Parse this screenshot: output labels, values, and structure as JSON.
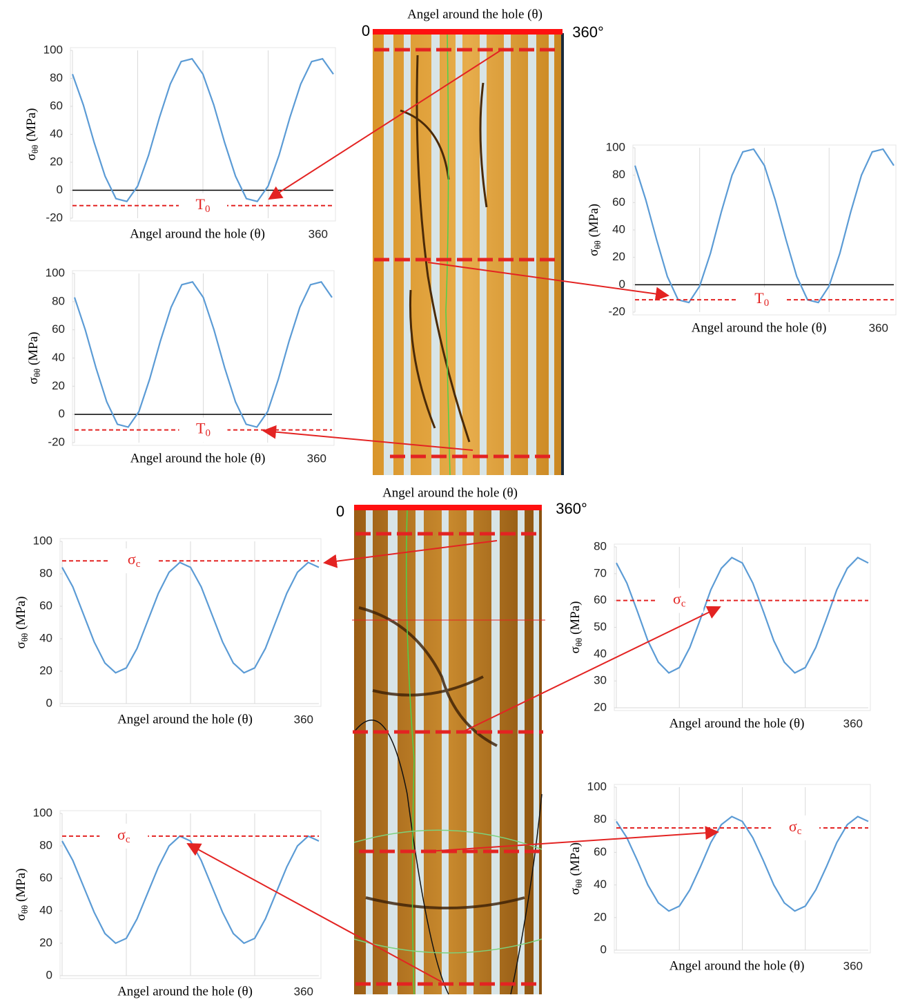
{
  "chart_data": [
    {
      "type": "line",
      "x": [
        0,
        15,
        30,
        45,
        60,
        75,
        90,
        105,
        120,
        135,
        150,
        165,
        180,
        195,
        210,
        225,
        240,
        255,
        270,
        285,
        300,
        315,
        330,
        345,
        360
      ],
      "values": [
        83,
        61,
        34,
        10,
        -6,
        -8,
        3,
        25,
        52,
        76,
        92,
        94,
        83,
        61,
        34,
        10,
        -6,
        -8,
        3,
        25,
        52,
        76,
        92,
        94,
        83
      ],
      "color": "#5b9bd5",
      "xlabel": "Angel around the hole (θ)",
      "ylabel": {
        "symbol": "σ",
        "sub": "θθ",
        "unit": " (MPa)"
      },
      "xlim": [
        0,
        360
      ],
      "xticks": [
        360
      ],
      "xgrid": [
        90,
        180,
        270
      ],
      "ylim": [
        -20,
        100
      ],
      "yticks": [
        -20,
        0,
        20,
        40,
        60,
        80,
        100
      ],
      "zero_line": true,
      "threshold": {
        "value": -11,
        "label": "T",
        "label_sub": "0",
        "color": "#e32322"
      }
    },
    {
      "type": "line",
      "x": [
        0,
        15,
        30,
        45,
        60,
        75,
        90,
        105,
        120,
        135,
        150,
        165,
        180,
        195,
        210,
        225,
        240,
        255,
        270,
        285,
        300,
        315,
        330,
        345,
        360
      ],
      "values": [
        83,
        60,
        33,
        9,
        -7,
        -9,
        2,
        25,
        52,
        76,
        92,
        94,
        83,
        60,
        33,
        9,
        -7,
        -9,
        2,
        25,
        52,
        76,
        92,
        94,
        83
      ],
      "color": "#5b9bd5",
      "xlabel": "Angel around the hole (θ)",
      "ylabel": {
        "symbol": "σ",
        "sub": "θθ",
        "unit": " (MPa)"
      },
      "xlim": [
        0,
        360
      ],
      "xticks": [
        360
      ],
      "xgrid": [
        90,
        180,
        270
      ],
      "ylim": [
        -20,
        100
      ],
      "yticks": [
        -20,
        0,
        20,
        40,
        60,
        80,
        100
      ],
      "zero_line": true,
      "threshold": {
        "value": -11,
        "label": "T",
        "label_sub": "0",
        "color": "#e32322"
      }
    },
    {
      "type": "line",
      "x": [
        0,
        15,
        30,
        45,
        60,
        75,
        90,
        105,
        120,
        135,
        150,
        165,
        180,
        195,
        210,
        225,
        240,
        255,
        270,
        285,
        300,
        315,
        330,
        345,
        360
      ],
      "values": [
        87,
        62,
        33,
        6,
        -11,
        -13,
        -1,
        23,
        53,
        80,
        97,
        99,
        87,
        62,
        33,
        6,
        -11,
        -13,
        -1,
        23,
        53,
        80,
        97,
        99,
        87
      ],
      "color": "#5b9bd5",
      "xlabel": "Angel around the hole (θ)",
      "ylabel": {
        "symbol": "σ",
        "sub": "θθ",
        "unit": " (MPa)"
      },
      "xlim": [
        0,
        360
      ],
      "xticks": [
        360
      ],
      "xgrid": [
        90,
        180,
        270
      ],
      "ylim": [
        -20,
        100
      ],
      "yticks": [
        -20,
        0,
        20,
        40,
        60,
        80,
        100
      ],
      "zero_line": true,
      "threshold": {
        "value": -11,
        "label": "T",
        "label_sub": "0",
        "color": "#e32322"
      }
    },
    {
      "type": "line",
      "x": [
        0,
        15,
        30,
        45,
        60,
        75,
        90,
        105,
        120,
        135,
        150,
        165,
        180,
        195,
        210,
        225,
        240,
        255,
        270,
        285,
        300,
        315,
        330,
        345,
        360
      ],
      "values": [
        84,
        72,
        55,
        38,
        25,
        19,
        22,
        34,
        51,
        68,
        81,
        87,
        84,
        72,
        55,
        38,
        25,
        19,
        22,
        34,
        51,
        68,
        81,
        87,
        84
      ],
      "color": "#5b9bd5",
      "xlabel": "Angel around the hole (θ)",
      "ylabel": {
        "symbol": "σ",
        "sub": "θθ",
        "unit": " (MPa)"
      },
      "xlim": [
        0,
        360
      ],
      "xticks": [
        360
      ],
      "xgrid": [
        90,
        180,
        270
      ],
      "ylim": [
        0,
        100
      ],
      "yticks": [
        0,
        20,
        40,
        60,
        80,
        100
      ],
      "zero_line": false,
      "threshold": {
        "value": 88,
        "label": "σ",
        "label_sub": "c",
        "color": "#e32322"
      }
    },
    {
      "type": "line",
      "x": [
        0,
        15,
        30,
        45,
        60,
        75,
        90,
        105,
        120,
        135,
        150,
        165,
        180,
        195,
        210,
        225,
        240,
        255,
        270,
        285,
        300,
        315,
        330,
        345,
        360
      ],
      "values": [
        74,
        66.5,
        56,
        45,
        37,
        33,
        35,
        42.5,
        53,
        64,
        72,
        76,
        74,
        66.5,
        56,
        45,
        37,
        33,
        35,
        42.5,
        53,
        64,
        72,
        76,
        74
      ],
      "color": "#5b9bd5",
      "xlabel": "Angel around the hole (θ)",
      "ylabel": {
        "symbol": "σ",
        "sub": "θθ",
        "unit": " (MPa)"
      },
      "xlim": [
        0,
        360
      ],
      "xticks": [
        360
      ],
      "xgrid": [
        90,
        180,
        270
      ],
      "ylim": [
        20,
        80
      ],
      "yticks": [
        20,
        30,
        40,
        50,
        60,
        70,
        80
      ],
      "zero_line": false,
      "threshold": {
        "value": 60,
        "label": "σ",
        "label_sub": "c",
        "color": "#e32322"
      }
    },
    {
      "type": "line",
      "x": [
        0,
        15,
        30,
        45,
        60,
        75,
        90,
        105,
        120,
        135,
        150,
        165,
        180,
        195,
        210,
        225,
        240,
        255,
        270,
        285,
        300,
        315,
        330,
        345,
        360
      ],
      "values": [
        83,
        71,
        55,
        39,
        26,
        20,
        23,
        35,
        51,
        67,
        80,
        86,
        83,
        71,
        55,
        39,
        26,
        20,
        23,
        35,
        51,
        67,
        80,
        86,
        83
      ],
      "color": "#5b9bd5",
      "xlabel": "Angel around the hole (θ)",
      "ylabel": {
        "symbol": "σ",
        "sub": "θθ",
        "unit": " (MPa)"
      },
      "xlim": [
        0,
        360
      ],
      "xticks": [
        360
      ],
      "xgrid": [
        90,
        180,
        270
      ],
      "ylim": [
        0,
        100
      ],
      "yticks": [
        0,
        20,
        40,
        60,
        80,
        100
      ],
      "zero_line": false,
      "threshold": {
        "value": 86,
        "label": "σ",
        "label_sub": "c",
        "color": "#e32322"
      }
    },
    {
      "type": "line",
      "x": [
        0,
        15,
        30,
        45,
        60,
        75,
        90,
        105,
        120,
        135,
        150,
        165,
        180,
        195,
        210,
        225,
        240,
        255,
        270,
        285,
        300,
        315,
        330,
        345,
        360
      ],
      "values": [
        79,
        69,
        55,
        40,
        29,
        24,
        27,
        37,
        51,
        66,
        77,
        82,
        79,
        69,
        55,
        40,
        29,
        24,
        27,
        37,
        51,
        66,
        77,
        82,
        79
      ],
      "color": "#5b9bd5",
      "xlabel": "Angel around the hole (θ)",
      "ylabel": {
        "symbol": "σ",
        "sub": "θθ",
        "unit": " (MPa)"
      },
      "xlim": [
        0,
        360
      ],
      "xticks": [
        360
      ],
      "xgrid": [
        90,
        180,
        270
      ],
      "ylim": [
        0,
        100
      ],
      "yticks": [
        0,
        20,
        40,
        60,
        80,
        100
      ],
      "zero_line": false,
      "threshold": {
        "value": 75,
        "label": "σ",
        "label_sub": "c",
        "color": "#e32322"
      }
    }
  ],
  "images": [
    {
      "title": "Angel around the hole (θ)",
      "left_label": "0",
      "right_label": "360°"
    },
    {
      "title": "Angel around the hole (θ)",
      "left_label": "0",
      "right_label": "360°"
    }
  ]
}
